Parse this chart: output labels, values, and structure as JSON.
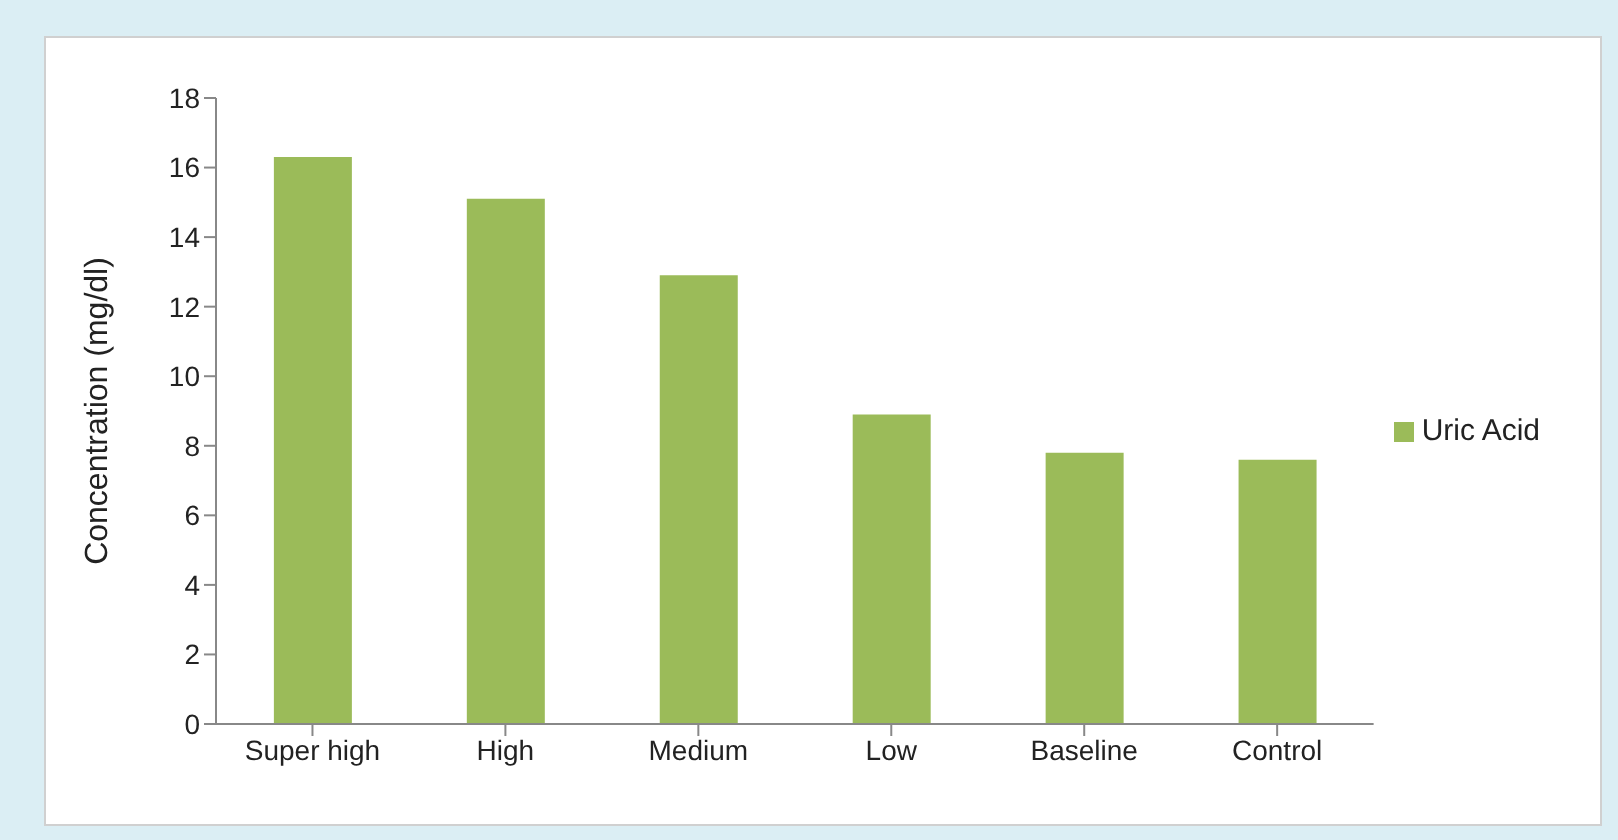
{
  "chart_data": {
    "type": "bar",
    "ylabel": "Concentration  (mg/dl)",
    "categories": [
      "Super high",
      "High",
      "Medium",
      "Low",
      "Baseline",
      "Control"
    ],
    "series": [
      {
        "name": "Uric Acid",
        "color": "#9bbb59",
        "values": [
          16.3,
          15.1,
          12.9,
          8.9,
          7.8,
          7.6
        ]
      }
    ],
    "ylim": [
      0,
      18
    ],
    "yticks": [
      0,
      2,
      4,
      6,
      8,
      10,
      12,
      14,
      16,
      18
    ],
    "grid": false,
    "legend": "right"
  }
}
